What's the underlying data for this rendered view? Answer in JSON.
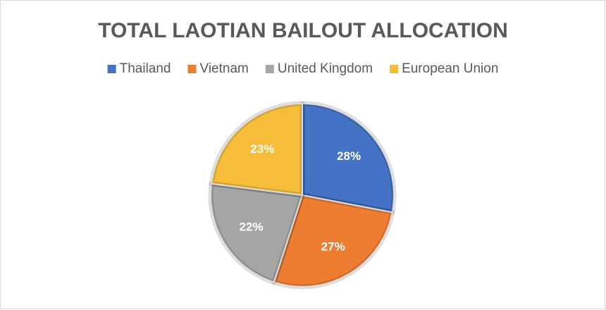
{
  "chart_data": {
    "type": "pie",
    "title": "TOTAL LAOTIAN BAILOUT ALLOCATION",
    "categories": [
      "Thailand",
      "Vietnam",
      "United Kingdom",
      "European Union"
    ],
    "values": [
      28,
      27,
      22,
      23
    ],
    "value_labels": [
      "28%",
      "27%",
      "22%",
      "23%"
    ],
    "colors": [
      "#4472c4",
      "#ed7d31",
      "#a5a5a5",
      "#f5bd3a"
    ],
    "legend": "top"
  }
}
